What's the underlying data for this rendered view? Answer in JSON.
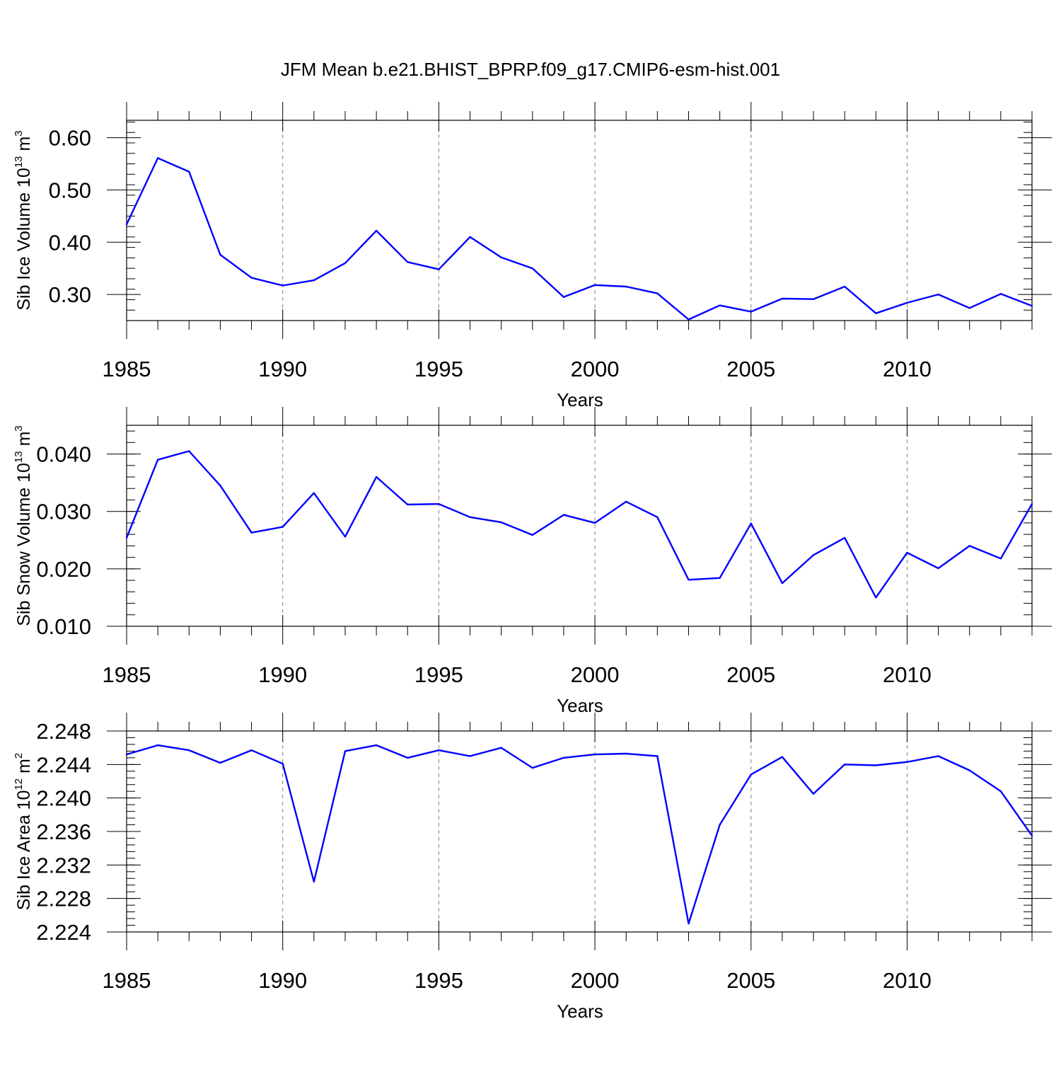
{
  "title": "JFM Mean b.e21.BHIST_BPRP.f09_g17.CMIP6-esm-hist.001",
  "colors": {
    "line": "#0000ff",
    "axis": "#000000",
    "grid": "#808080"
  },
  "chart_data": [
    {
      "type": "line",
      "id": "ice-volume",
      "xlabel": "Years",
      "ylabel_main": "Sib Ice Volume 10",
      "ylabel_sup": "13",
      "ylabel_unit": " m",
      "ylabel_unit_sup": "3",
      "xlim": [
        1985,
        2014
      ],
      "ylim": [
        0.25,
        0.6333
      ],
      "yticks": [
        0.3,
        0.4,
        0.5,
        0.6
      ],
      "ytick_labels": [
        "0.30",
        "0.40",
        "0.50",
        "0.60"
      ],
      "yminor_step": 0.02,
      "xticks": [
        1985,
        1990,
        1995,
        2000,
        2005,
        2010
      ],
      "xtick_labels": [
        "1985",
        "1990",
        "1995",
        "2000",
        "2005",
        "2010"
      ],
      "grid_x": [
        1990,
        1995,
        2000,
        2005,
        2010
      ],
      "x": [
        1985,
        1986,
        1987,
        1988,
        1989,
        1990,
        1991,
        1992,
        1993,
        1994,
        1995,
        1996,
        1997,
        1998,
        1999,
        2000,
        2001,
        2002,
        2003,
        2004,
        2005,
        2006,
        2007,
        2008,
        2009,
        2010,
        2011,
        2012,
        2013,
        2014
      ],
      "series": [
        {
          "name": "Sib Ice Volume",
          "values": [
            0.434,
            0.561,
            0.535,
            0.376,
            0.332,
            0.317,
            0.327,
            0.36,
            0.422,
            0.362,
            0.348,
            0.41,
            0.371,
            0.35,
            0.295,
            0.318,
            0.315,
            0.302,
            0.252,
            0.279,
            0.267,
            0.292,
            0.291,
            0.315,
            0.264,
            0.284,
            0.3,
            0.274,
            0.301,
            0.278
          ]
        }
      ]
    },
    {
      "type": "line",
      "id": "snow-volume",
      "xlabel": "Years",
      "ylabel_main": "Sib Snow Volume 10",
      "ylabel_sup": "13",
      "ylabel_unit": " m",
      "ylabel_unit_sup": "3",
      "xlim": [
        1985,
        2014
      ],
      "ylim": [
        0.01,
        0.045
      ],
      "yticks": [
        0.01,
        0.02,
        0.03,
        0.04
      ],
      "ytick_labels": [
        "0.010",
        "0.020",
        "0.030",
        "0.040"
      ],
      "yminor_step": 0.002,
      "xticks": [
        1985,
        1990,
        1995,
        2000,
        2005,
        2010
      ],
      "xtick_labels": [
        "1985",
        "1990",
        "1995",
        "2000",
        "2005",
        "2010"
      ],
      "grid_x": [
        1990,
        1995,
        2000,
        2005,
        2010
      ],
      "x": [
        1985,
        1986,
        1987,
        1988,
        1989,
        1990,
        1991,
        1992,
        1993,
        1994,
        1995,
        1996,
        1997,
        1998,
        1999,
        2000,
        2001,
        2002,
        2003,
        2004,
        2005,
        2006,
        2007,
        2008,
        2009,
        2010,
        2011,
        2012,
        2013,
        2014
      ],
      "series": [
        {
          "name": "Sib Snow Volume",
          "values": [
            0.0254,
            0.039,
            0.0405,
            0.0345,
            0.0263,
            0.0273,
            0.0332,
            0.0256,
            0.036,
            0.0312,
            0.0313,
            0.029,
            0.0281,
            0.0259,
            0.0294,
            0.028,
            0.0317,
            0.029,
            0.0181,
            0.0184,
            0.0279,
            0.0175,
            0.0224,
            0.0254,
            0.015,
            0.0228,
            0.0201,
            0.024,
            0.0218,
            0.0313
          ]
        }
      ]
    },
    {
      "type": "line",
      "id": "ice-area",
      "xlabel": "Years",
      "ylabel_main": "Sib Ice Area 10",
      "ylabel_sup": "12",
      "ylabel_unit": " m",
      "ylabel_unit_sup": "2",
      "xlim": [
        1985,
        2014
      ],
      "ylim": [
        2.224,
        2.248
      ],
      "yticks": [
        2.224,
        2.228,
        2.232,
        2.236,
        2.24,
        2.244,
        2.248
      ],
      "ytick_labels": [
        "2.224",
        "2.228",
        "2.232",
        "2.236",
        "2.240",
        "2.244",
        "2.248"
      ],
      "yminor_step": 0.0008,
      "xticks": [
        1985,
        1990,
        1995,
        2000,
        2005,
        2010
      ],
      "xtick_labels": [
        "1985",
        "1990",
        "1995",
        "2000",
        "2005",
        "2010"
      ],
      "grid_x": [
        1990,
        1995,
        2000,
        2005,
        2010
      ],
      "x": [
        1985,
        1986,
        1987,
        1988,
        1989,
        1990,
        1991,
        1992,
        1993,
        1994,
        1995,
        1996,
        1997,
        1998,
        1999,
        2000,
        2001,
        2002,
        2003,
        2004,
        2005,
        2006,
        2007,
        2008,
        2009,
        2010,
        2011,
        2012,
        2013,
        2014
      ],
      "series": [
        {
          "name": "Sib Ice Area",
          "values": [
            2.2452,
            2.2463,
            2.2457,
            2.2442,
            2.2457,
            2.2441,
            2.23,
            2.2456,
            2.2463,
            2.2448,
            2.2457,
            2.245,
            2.246,
            2.2436,
            2.2448,
            2.2452,
            2.2453,
            2.245,
            2.225,
            2.2368,
            2.2428,
            2.2449,
            2.2405,
            2.244,
            2.2439,
            2.2443,
            2.245,
            2.2433,
            2.2408,
            2.2355
          ]
        }
      ]
    }
  ]
}
